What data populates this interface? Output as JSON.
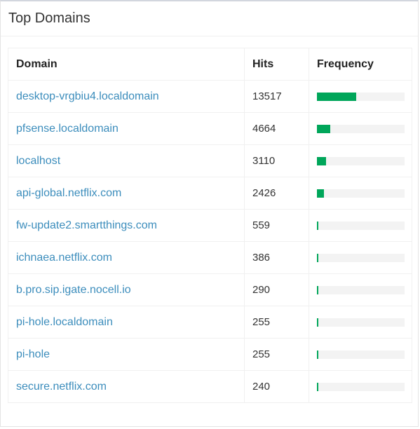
{
  "panel": {
    "title": "Top Domains"
  },
  "table": {
    "headers": {
      "domain": "Domain",
      "hits": "Hits",
      "frequency": "Frequency"
    },
    "rows": [
      {
        "domain": "desktop-vrgbiu4.localdomain",
        "hits": "13517",
        "frequency": 0.448
      },
      {
        "domain": "pfsense.localdomain",
        "hits": "4664",
        "frequency": 0.152
      },
      {
        "domain": "localhost",
        "hits": "3110",
        "frequency": 0.104
      },
      {
        "domain": "api-global.netflix.com",
        "hits": "2426",
        "frequency": 0.08
      },
      {
        "domain": "fw-update2.smartthings.com",
        "hits": "559",
        "frequency": 0.018
      },
      {
        "domain": "ichnaea.netflix.com",
        "hits": "386",
        "frequency": 0.013
      },
      {
        "domain": "b.pro.sip.igate.nocell.io",
        "hits": "290",
        "frequency": 0.01
      },
      {
        "domain": "pi-hole.localdomain",
        "hits": "255",
        "frequency": 0.008
      },
      {
        "domain": "pi-hole",
        "hits": "255",
        "frequency": 0.008
      },
      {
        "domain": "secure.netflix.com",
        "hits": "240",
        "frequency": 0.008
      }
    ]
  },
  "colors": {
    "link": "#3c8dbc",
    "bar": "#00a65a",
    "bar_track": "#f3f3f3"
  }
}
